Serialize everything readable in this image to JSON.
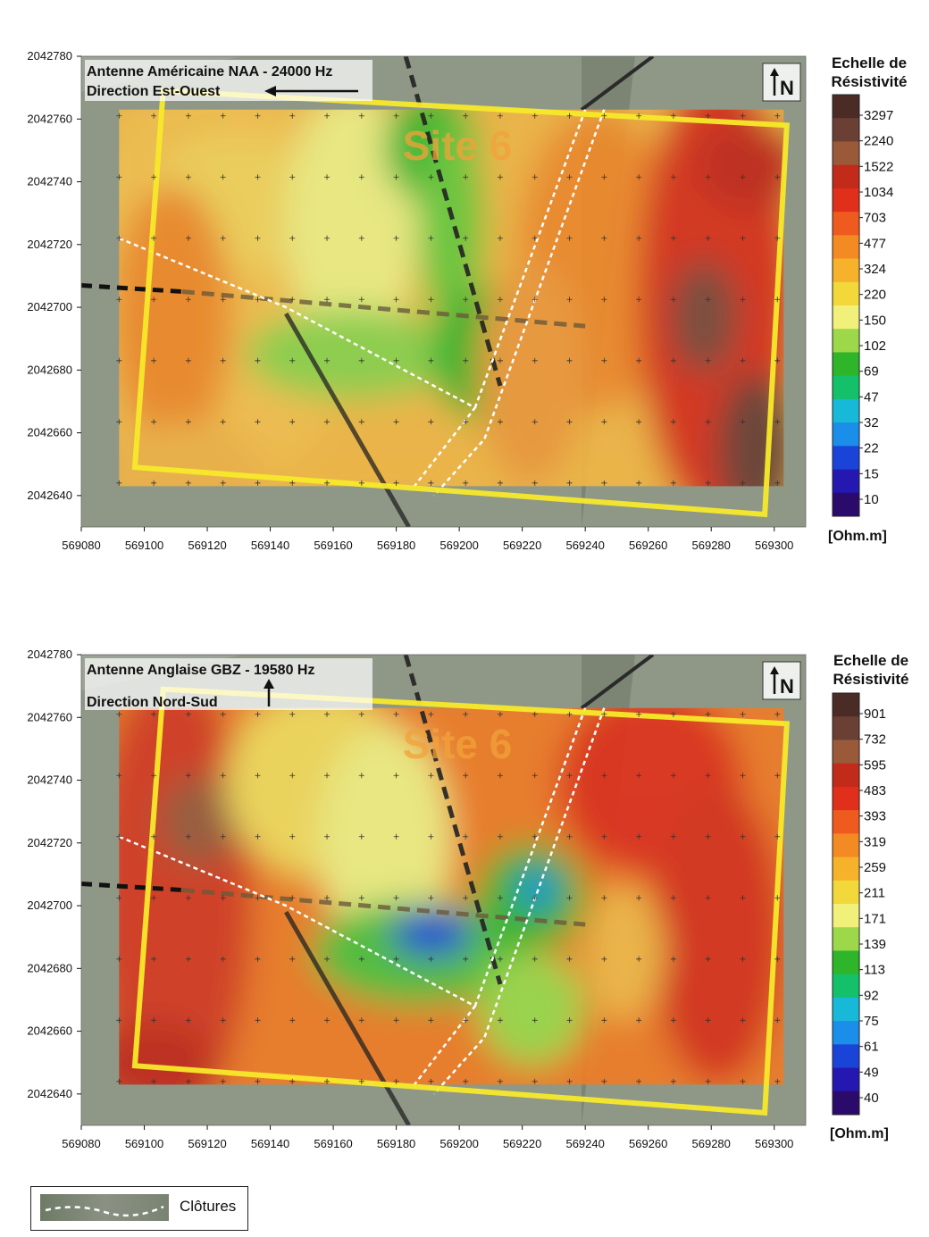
{
  "chart_data": [
    {
      "type": "heatmap",
      "title": "Antenne Américaine NAA - 24000 Hz",
      "subtitle": "Direction Est-Ouest",
      "site_label": "Site 6",
      "north_label": "N",
      "x_ticks": [
        569080,
        569100,
        569120,
        569140,
        569160,
        569180,
        569200,
        569220,
        569240,
        569260,
        569280,
        569300
      ],
      "y_ticks": [
        2042780,
        2042760,
        2042740,
        2042720,
        2042700,
        2042680,
        2042660,
        2042640
      ],
      "xlim": [
        569080,
        569310
      ],
      "ylim": [
        2042630,
        2042780
      ],
      "legend": {
        "title_line1": "Echelle de",
        "title_line2": "Résistivité",
        "unit": "[Ohm.m]",
        "labels": [
          "3297",
          "2240",
          "1522",
          "1034",
          "703",
          "477",
          "324",
          "220",
          "150",
          "102",
          "69",
          "47",
          "32",
          "22",
          "15",
          "10"
        ],
        "colors": [
          "#4a2b26",
          "#6a3f34",
          "#9a5a3a",
          "#c22a1a",
          "#e0301c",
          "#ef5a1e",
          "#f48a23",
          "#f6b22a",
          "#f2d83a",
          "#f0f07a",
          "#9cd84a",
          "#2fb52a",
          "#14c06a",
          "#18b8d8",
          "#1a8ee8",
          "#1a44d8",
          "#2418b0",
          "#2a0a6a"
        ]
      }
    },
    {
      "type": "heatmap",
      "title": "Antenne Anglaise GBZ - 19580 Hz",
      "subtitle": "Direction Nord-Sud",
      "site_label": "Site 6",
      "north_label": "N",
      "x_ticks": [
        569080,
        569100,
        569120,
        569140,
        569160,
        569180,
        569200,
        569220,
        569240,
        569260,
        569280,
        569300
      ],
      "y_ticks": [
        2042780,
        2042760,
        2042740,
        2042720,
        2042700,
        2042680,
        2042660,
        2042640
      ],
      "xlim": [
        569080,
        569310
      ],
      "ylim": [
        2042630,
        2042780
      ],
      "legend": {
        "title_line1": "Echelle de",
        "title_line2": "Résistivité",
        "unit": "[Ohm.m]",
        "labels": [
          "901",
          "732",
          "595",
          "483",
          "393",
          "319",
          "259",
          "211",
          "171",
          "139",
          "113",
          "92",
          "75",
          "61",
          "49",
          "40"
        ],
        "colors": [
          "#4a2b26",
          "#6a3f34",
          "#9a5a3a",
          "#c22a1a",
          "#e0301c",
          "#ef5a1e",
          "#f48a23",
          "#f6b22a",
          "#f2d83a",
          "#f0f07a",
          "#9cd84a",
          "#2fb52a",
          "#14c06a",
          "#18b8d8",
          "#1a8ee8",
          "#1a44d8",
          "#2418b0",
          "#2a0a6a"
        ]
      }
    }
  ],
  "footer": {
    "legend_label": "Clôtures"
  }
}
